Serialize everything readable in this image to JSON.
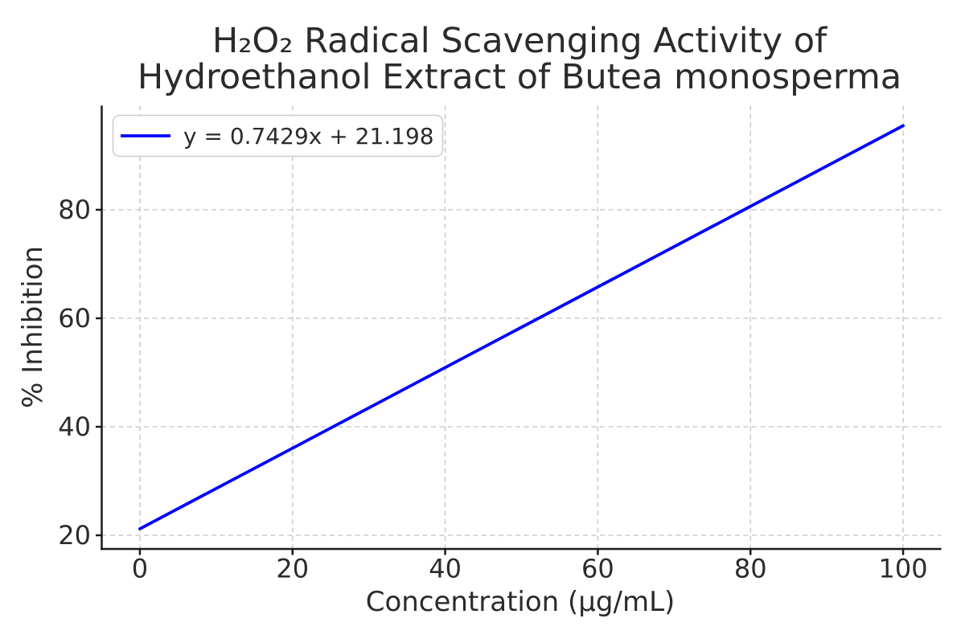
{
  "figure": {
    "background": "#ffffff"
  },
  "chart_data": {
    "type": "line",
    "title": "H₂O₂ Radical Scavenging Activity of Hydroethanol Extract of Butea monosperma",
    "title_lines": [
      "H₂O₂ Radical Scavenging Activity of",
      "Hydroethanol Extract of Butea monosperma"
    ],
    "xlabel": "Concentration (μg/mL)",
    "ylabel": "% Inhibition",
    "legend": {
      "position": "upper left",
      "entries": [
        "y = 0.7429x + 21.198"
      ]
    },
    "equation": {
      "slope": 0.7429,
      "intercept": 21.198,
      "label": "y = 0.7429x + 21.198"
    },
    "series": [
      {
        "name": "y = 0.7429x + 21.198",
        "color": "#0000ff",
        "x": [
          0,
          100
        ],
        "y": [
          21.198,
          95.488
        ]
      }
    ],
    "xlim": [
      -5,
      105
    ],
    "ylim": [
      17.48,
      99.2
    ],
    "xticks": [
      0,
      20,
      40,
      60,
      80,
      100
    ],
    "yticks": [
      20,
      40,
      60,
      80
    ],
    "grid": true,
    "grid_style": "dashed",
    "colors": {
      "line": "#0000ff",
      "grid": "#cccccc",
      "spine": "#1a1a1a",
      "text": "#2b2b2b",
      "legend_border": "#cccccc",
      "background": "#ffffff"
    }
  }
}
